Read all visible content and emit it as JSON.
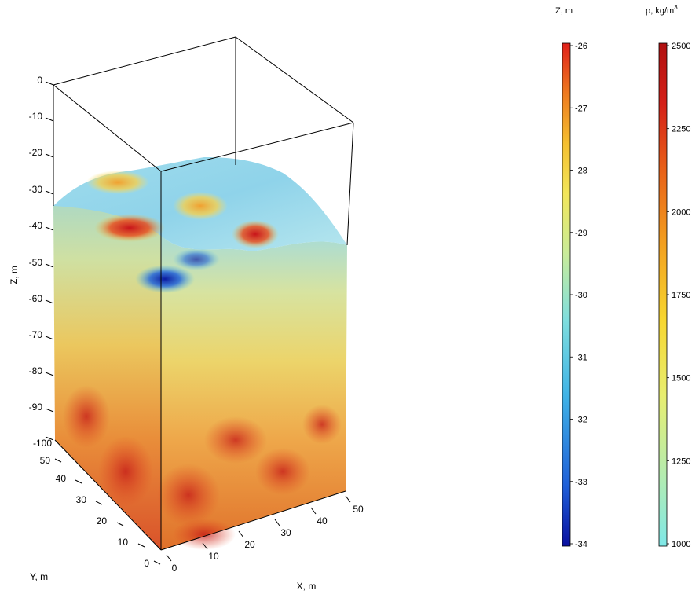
{
  "chart_data": {
    "type": "3d-block",
    "description_free": true,
    "axes": {
      "x": {
        "label": "X, m",
        "ticks": [
          "0",
          "10",
          "20",
          "30",
          "40",
          "50"
        ],
        "range": [
          0,
          50
        ]
      },
      "y": {
        "label": "Y, m",
        "ticks": [
          "0",
          "10",
          "20",
          "30",
          "40",
          "50"
        ],
        "range": [
          0,
          50
        ]
      },
      "z": {
        "label": "Z, m",
        "ticks": [
          "0",
          "-10",
          "-20",
          "-30",
          "-40",
          "-50",
          "-60",
          "-70",
          "-80",
          "-90",
          "-100"
        ],
        "range": [
          -100,
          0
        ]
      }
    },
    "surface_colorbar": {
      "label": "Z, m",
      "ticks": [
        "-26",
        "-27",
        "-28",
        "-29",
        "-30",
        "-31",
        "-32",
        "-33",
        "-34"
      ],
      "range": [
        -34,
        -26
      ],
      "colors": [
        "#0a10a0",
        "#1f5fd8",
        "#3fb3e6",
        "#7fdede",
        "#c8ec9a",
        "#f2e65a",
        "#f5c030",
        "#ee7a1f",
        "#e0201a"
      ]
    },
    "density_colorbar": {
      "label_prefix": "ρ, kg/m",
      "label_sup": "3",
      "ticks": [
        "2500",
        "2250",
        "2000",
        "1750",
        "1500",
        "1250",
        "1000"
      ],
      "range": [
        1000,
        2500
      ],
      "colors": [
        "#7fe8e8",
        "#b4ecb0",
        "#e8ee70",
        "#f7d630",
        "#f2a020",
        "#e86018",
        "#d42018",
        "#b01010"
      ]
    }
  }
}
